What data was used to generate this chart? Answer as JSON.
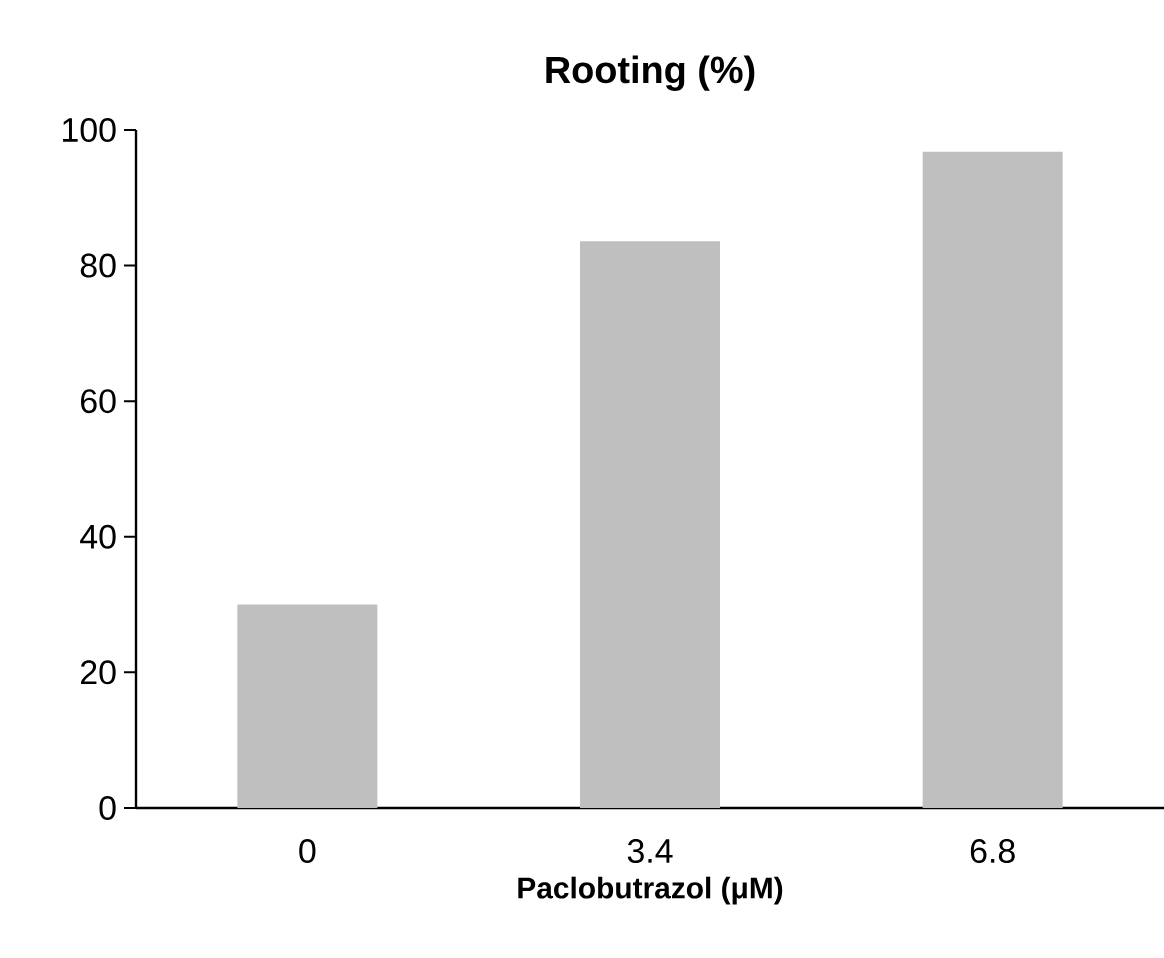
{
  "chart_data": {
    "type": "bar",
    "title": "Rooting (%)",
    "xlabel": "Paclobutrazol (μM)",
    "categories": [
      "0",
      "3.4",
      "6.8"
    ],
    "values": [
      30,
      83.6,
      96.8
    ],
    "color": "#bfbfbf",
    "ylim": [
      0,
      100
    ],
    "yticks": [
      0,
      20,
      40,
      60,
      80,
      100
    ],
    "grid": false
  }
}
